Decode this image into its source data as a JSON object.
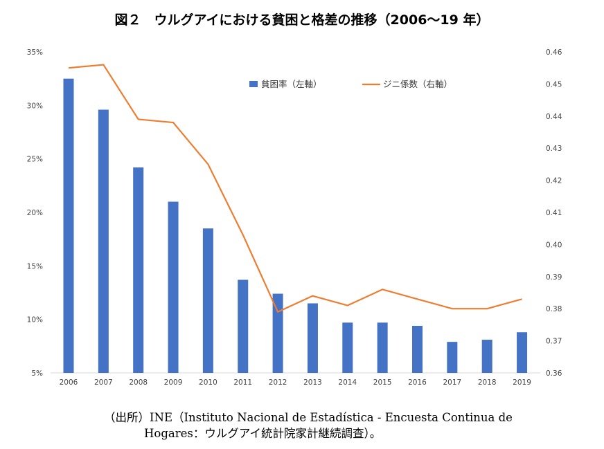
{
  "chart_data": {
    "type": "bar+line",
    "title": "図２　ウルグアイにおける貧困と格差の推移（2006～19 年）",
    "categories": [
      "2006",
      "2007",
      "2008",
      "2009",
      "2010",
      "2011",
      "2012",
      "2013",
      "2014",
      "2015",
      "2016",
      "2017",
      "2018",
      "2019"
    ],
    "series": [
      {
        "name": "貧困率（左軸）",
        "type": "bar",
        "axis": "left",
        "color": "#4472C4",
        "values": [
          32.5,
          29.6,
          24.2,
          21.0,
          18.5,
          13.7,
          12.4,
          11.5,
          9.7,
          9.7,
          9.4,
          7.9,
          8.1,
          8.8
        ]
      },
      {
        "name": "ジニ係数（右軸）",
        "type": "line",
        "axis": "right",
        "color": "#ED7D31",
        "values": [
          0.455,
          0.456,
          0.439,
          0.438,
          0.425,
          0.403,
          0.379,
          0.384,
          0.381,
          0.386,
          0.383,
          0.38,
          0.38,
          0.383
        ]
      }
    ],
    "left_axis": {
      "ylim": [
        5,
        35
      ],
      "ticks": [
        5,
        10,
        15,
        20,
        25,
        30,
        35
      ],
      "tick_labels": [
        "5%",
        "10%",
        "15%",
        "20%",
        "25%",
        "30%",
        "35%"
      ]
    },
    "right_axis": {
      "ylim": [
        0.36,
        0.46
      ],
      "ticks": [
        0.36,
        0.37,
        0.38,
        0.39,
        0.4,
        0.41,
        0.42,
        0.43,
        0.44,
        0.45,
        0.46
      ],
      "tick_labels": [
        "0.36",
        "0.37",
        "0.38",
        "0.39",
        "0.40",
        "0.41",
        "0.42",
        "0.43",
        "0.44",
        "0.45",
        "0.46"
      ]
    },
    "grid": false,
    "legend_position": "top-right"
  },
  "source": {
    "line1": "（出所）INE（Instituto Nacional de Estadística - Encuesta Continua de",
    "line2": "Hogares：ウルグアイ統計院家計継続調査）。"
  }
}
